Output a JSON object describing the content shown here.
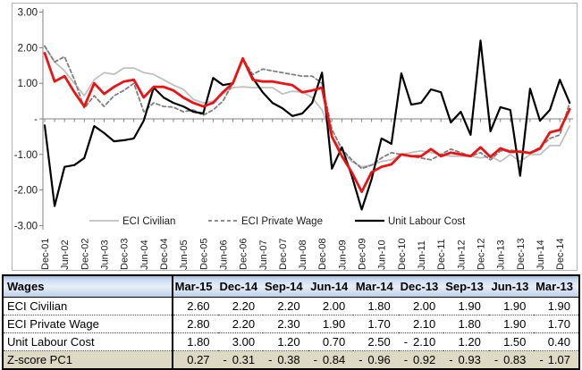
{
  "chart": {
    "y_axis_ticks": [
      "3.00",
      "2.00",
      "1.00",
      "-",
      "-1.00",
      "-2.00",
      "-3.00"
    ],
    "x_axis_labels": [
      "Dec-01",
      "Jun-02",
      "Dec-02",
      "Jun-03",
      "Dec-03",
      "Jun-04",
      "Dec-04",
      "Jun-05",
      "Dec-05",
      "Jun-06",
      "Dec-06",
      "Jun-07",
      "Dec-07",
      "Jun-08",
      "Dec-08",
      "Jun-09",
      "Dec-09",
      "Jun-10",
      "Dec-10",
      "Jun-11",
      "Dec-11",
      "Jun-12",
      "Dec-12",
      "Jun-13",
      "Dec-13",
      "Jun-14",
      "Dec-14"
    ],
    "legend": [
      {
        "label": "ECI Civilian"
      },
      {
        "label": "ECI Private Wage"
      },
      {
        "label": "Unit Labour Cost"
      }
    ],
    "colors": {
      "eci_civilian": "#c0c0c0",
      "eci_private_wage": "#7f7f7f",
      "unit_labour_cost": "#000000",
      "zscore_pc1": "#ee1111",
      "axis": "#808080",
      "border": "#b3b3b3",
      "tick_text": "#1a1a1a"
    }
  },
  "chart_data": {
    "type": "line",
    "title": "",
    "xlabel": "",
    "ylabel": "",
    "ylim": [
      -3,
      3
    ],
    "y_tick_interval": 1,
    "grid": false,
    "legend_position": "bottom-inside",
    "x": [
      "Dec-01",
      "Mar-02",
      "Jun-02",
      "Sep-02",
      "Dec-02",
      "Mar-03",
      "Jun-03",
      "Sep-03",
      "Dec-03",
      "Mar-04",
      "Jun-04",
      "Sep-04",
      "Dec-04",
      "Mar-05",
      "Jun-05",
      "Sep-05",
      "Dec-05",
      "Mar-06",
      "Jun-06",
      "Sep-06",
      "Dec-06",
      "Mar-07",
      "Jun-07",
      "Sep-07",
      "Dec-07",
      "Mar-08",
      "Jun-08",
      "Sep-08",
      "Dec-08",
      "Mar-09",
      "Jun-09",
      "Sep-09",
      "Dec-09",
      "Mar-10",
      "Jun-10",
      "Sep-10",
      "Dec-10",
      "Mar-11",
      "Jun-11",
      "Sep-11",
      "Dec-11",
      "Mar-12",
      "Jun-12",
      "Sep-12",
      "Dec-12",
      "Mar-13",
      "Jun-13",
      "Sep-13",
      "Dec-13",
      "Mar-14",
      "Jun-14",
      "Sep-14",
      "Dec-14",
      "Mar-15"
    ],
    "series": [
      {
        "name": "ECI Civilian",
        "in_legend": true,
        "style": "solid",
        "width": 1.8,
        "values": [
          2.03,
          1.6,
          1.35,
          1.0,
          0.65,
          1.1,
          1.3,
          1.25,
          1.43,
          1.43,
          1.3,
          1.25,
          1.1,
          0.95,
          0.83,
          0.55,
          0.45,
          0.5,
          0.7,
          0.88,
          0.9,
          0.88,
          0.88,
          0.88,
          0.7,
          0.78,
          0.75,
          0.6,
          0.25,
          -0.5,
          -0.9,
          -1.2,
          -1.35,
          -1.3,
          -1.2,
          -1.15,
          -1.0,
          -0.95,
          -0.9,
          -0.95,
          -1.0,
          -1.05,
          -1.05,
          -1.05,
          -1.1,
          -1.05,
          -1.2,
          -1.0,
          -1.2,
          -1.0,
          -1.0,
          -0.75,
          -0.75,
          -0.2
        ]
      },
      {
        "name": "ECI Private Wage",
        "in_legend": true,
        "style": "dashed",
        "width": 1.8,
        "values": [
          2.05,
          1.6,
          1.75,
          1.1,
          0.3,
          0.65,
          0.35,
          0.65,
          0.8,
          1.0,
          0.2,
          0.45,
          0.35,
          0.33,
          0.2,
          0.25,
          0.1,
          0.25,
          0.5,
          1.0,
          1.7,
          1.25,
          1.4,
          1.35,
          1.3,
          1.25,
          1.2,
          1.2,
          1.0,
          -0.3,
          -0.85,
          -1.15,
          -1.4,
          -1.3,
          -1.1,
          -0.95,
          -1.0,
          -1.05,
          -1.1,
          -1.15,
          -1.0,
          -0.85,
          -0.95,
          -1.05,
          -0.95,
          -1.15,
          -0.9,
          -0.88,
          -0.92,
          -0.95,
          -0.8,
          -0.55,
          -0.45,
          0.45
        ]
      },
      {
        "name": "Unit Labour Cost",
        "in_legend": true,
        "style": "solid",
        "width": 2.2,
        "values": [
          -0.18,
          -2.45,
          -1.35,
          -1.3,
          -1.1,
          -0.2,
          -0.4,
          -0.63,
          -0.6,
          -0.55,
          -0.05,
          0.88,
          0.6,
          0.45,
          0.35,
          0.2,
          0.15,
          1.15,
          0.95,
          1.0,
          1.68,
          1.15,
          0.75,
          0.45,
          0.3,
          0.08,
          0.15,
          0.45,
          1.3,
          -1.4,
          -0.8,
          -1.6,
          -2.55,
          -1.7,
          -0.55,
          -0.7,
          1.28,
          0.4,
          0.45,
          0.83,
          0.75,
          -0.1,
          0.2,
          -0.45,
          2.2,
          -0.35,
          0.33,
          0.25,
          -1.6,
          0.85,
          -0.05,
          0.25,
          1.1,
          0.45
        ]
      },
      {
        "name": "Z-score PC1",
        "in_legend": false,
        "style": "solid",
        "width": 2.8,
        "values": [
          1.85,
          1.05,
          1.2,
          0.75,
          0.35,
          1.0,
          0.7,
          0.9,
          1.05,
          1.1,
          0.6,
          0.9,
          0.9,
          0.8,
          0.6,
          0.45,
          0.35,
          0.45,
          0.75,
          1.0,
          1.7,
          1.1,
          1.05,
          1.05,
          1.0,
          0.95,
          0.75,
          0.8,
          0.88,
          -0.5,
          -1.05,
          -1.5,
          -2.05,
          -1.5,
          -1.35,
          -1.28,
          -1.0,
          -1.05,
          -1.05,
          -0.85,
          -1.05,
          -0.95,
          -1.0,
          -1.05,
          -0.8,
          -1.07,
          -0.83,
          -0.93,
          -0.92,
          -0.96,
          -0.84,
          -0.38,
          -0.31,
          0.27
        ]
      }
    ]
  },
  "table": {
    "title_cell": "Wages",
    "columns": [
      "Mar-15",
      "Dec-14",
      "Sep-14",
      "Jun-14",
      "Mar-14",
      "Dec-13",
      "Sep-13",
      "Jun-13",
      "Mar-13"
    ],
    "rows": [
      {
        "label": "ECI Civilian",
        "highlight": false,
        "values": [
          "2.60",
          "2.20",
          "2.20",
          "2.00",
          "1.80",
          "2.00",
          "1.90",
          "1.90",
          "1.90"
        ]
      },
      {
        "label": "ECI Private Wage",
        "highlight": false,
        "values": [
          "2.80",
          "2.20",
          "2.30",
          "1.90",
          "1.70",
          "2.10",
          "1.80",
          "1.90",
          "1.70"
        ]
      },
      {
        "label": "Unit Labour Cost",
        "highlight": false,
        "values": [
          "1.80",
          "3.00",
          "1.20",
          "0.70",
          "2.50",
          "-2.10",
          "1.20",
          "1.50",
          "0.40"
        ]
      },
      {
        "label": "Z-score PC1",
        "highlight": true,
        "values": [
          "0.27",
          "-0.31",
          "-0.38",
          "-0.84",
          "-0.96",
          "-0.92",
          "-0.93",
          "-0.83",
          "-1.07"
        ]
      }
    ],
    "colors": {
      "highlight_row_bg": "#ddd9c3",
      "header_text": "#000000"
    }
  }
}
